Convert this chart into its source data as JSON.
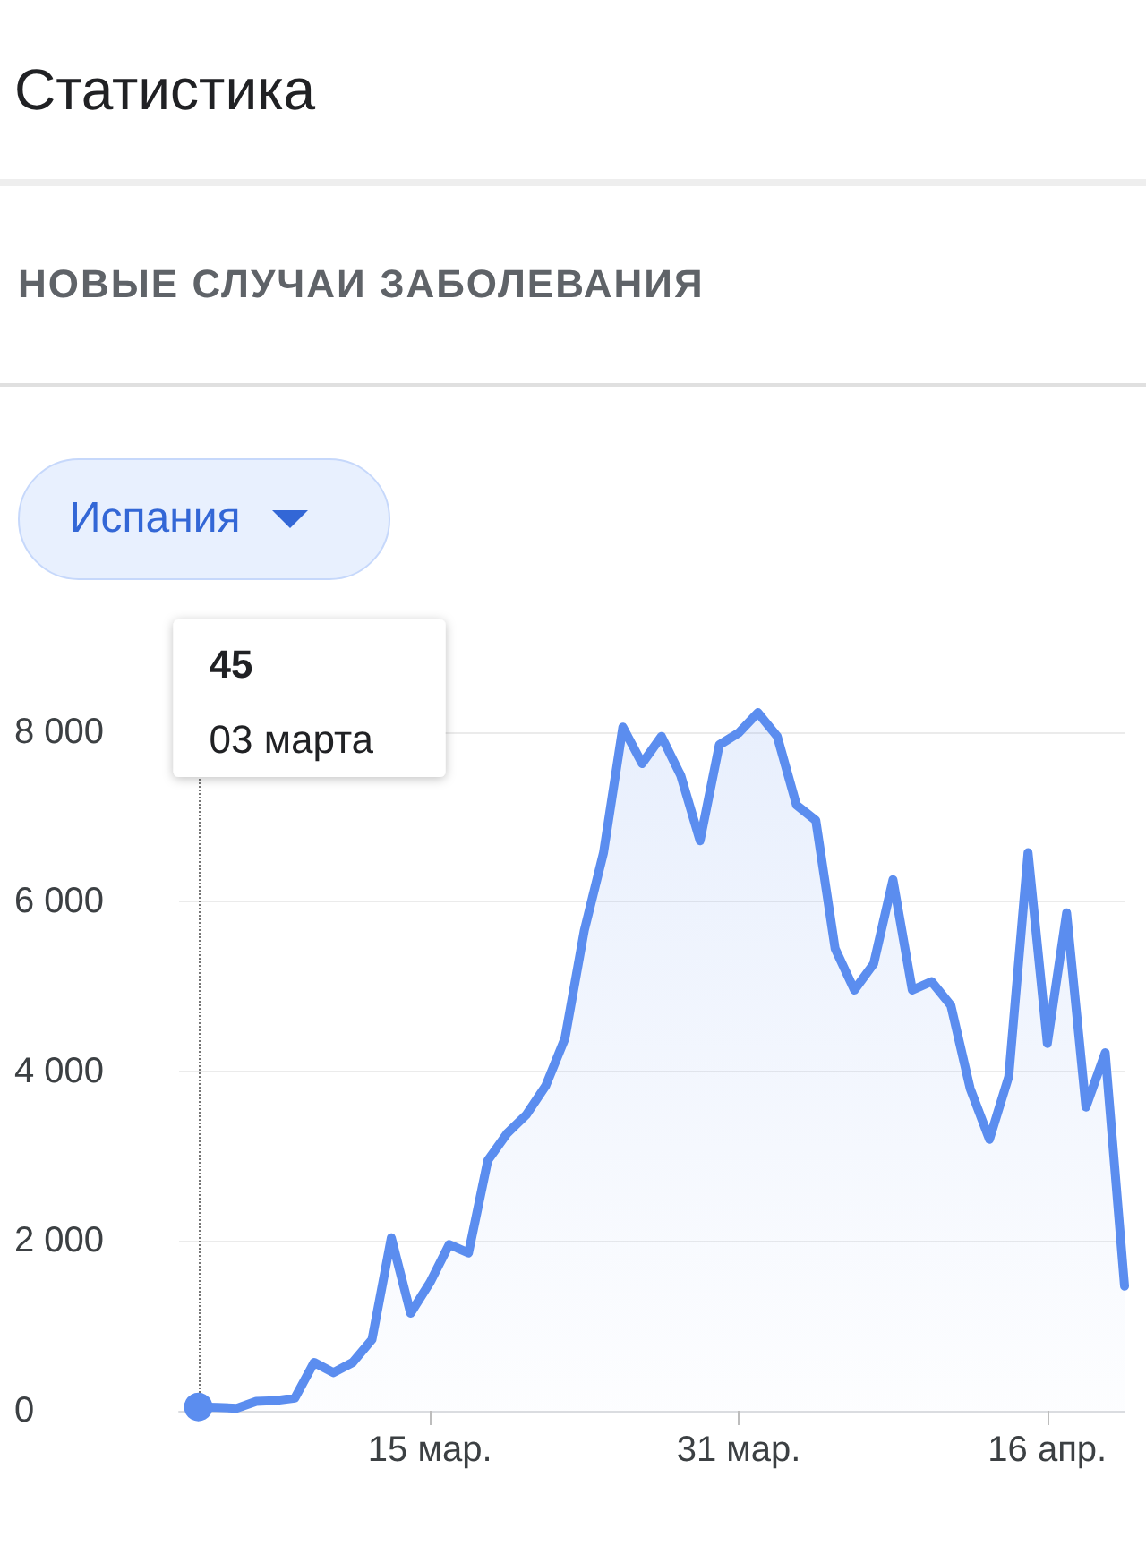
{
  "chart_data": {
    "type": "area",
    "title": "Статистика",
    "subtitle": "НОВЫЕ СЛУЧАИ ЗАБОЛЕВАНИЯ",
    "annotations": [
      "Испания",
      "45",
      "03 марта"
    ],
    "x": [
      "--03-03",
      "--03-04",
      "--03-05",
      "--03-06",
      "--03-07",
      "--03-08",
      "--03-09",
      "--03-10",
      "--03-11",
      "--03-12",
      "--03-13",
      "--03-14",
      "--03-15",
      "--03-16",
      "--03-17",
      "--03-18",
      "--03-19",
      "--03-20",
      "--03-21",
      "--03-22",
      "--03-23",
      "--03-24",
      "--03-25",
      "--03-26",
      "--03-27",
      "--03-28",
      "--03-29",
      "--03-30",
      "--03-31",
      "--04-01",
      "--04-02",
      "--04-03",
      "--04-04",
      "--04-05",
      "--04-06",
      "--04-07",
      "--04-08",
      "--04-09",
      "--04-10",
      "--04-11",
      "--04-12",
      "--04-13",
      "--04-14",
      "--04-15",
      "--04-16",
      "--04-17",
      "--04-18",
      "--04-19",
      "--04-20"
    ],
    "series": [
      {
        "color": "#5b8def",
        "values": [
          45,
          40,
          30,
          110,
          120,
          150,
          570,
          450,
          570,
          840,
          2040,
          1150,
          1510,
          1960,
          1860,
          2950,
          3270,
          3490,
          3830,
          4390,
          5660,
          6580,
          8060,
          7630,
          7950,
          7490,
          6720,
          7850,
          7990,
          8230,
          7950,
          7140,
          6960,
          5450,
          4960,
          5270,
          6260,
          4960,
          5060,
          4780,
          3800,
          3200,
          3940,
          6580,
          4330,
          5870,
          3580,
          4220,
          1470
        ]
      }
    ],
    "xlim": [
      "--03-02",
      "--04-20"
    ],
    "xticks": [
      {
        "value": "--03-15",
        "label": "15 мар."
      },
      {
        "value": "--03-31",
        "label": "31 мар."
      },
      {
        "value": "--04-16",
        "label": "16 апр."
      }
    ],
    "ylim": [
      0,
      8400
    ],
    "yticks": [
      0,
      {
        "value": 2000,
        "label": "2 000"
      },
      {
        "value": 4000,
        "label": "4 000"
      },
      {
        "value": 6000,
        "label": "6 000"
      },
      {
        "value": 8000,
        "label": "8 000"
      }
    ],
    "grid": "y",
    "marker": "none",
    "line_style": "solid",
    "ref_lines": [
      {
        "axis": "x",
        "value": "--03-03",
        "line_style": "dotted",
        "color": "#757575"
      }
    ]
  }
}
